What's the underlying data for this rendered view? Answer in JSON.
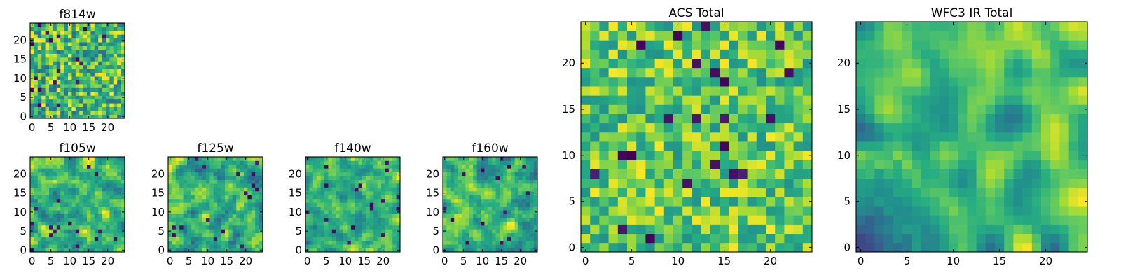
{
  "chart_data": [
    {
      "type": "heatmap",
      "title": "f814w",
      "xticks": [
        "0",
        "5",
        "10",
        "15",
        "20"
      ],
      "yticks": [
        "0",
        "5",
        "10",
        "15",
        "20"
      ],
      "xlim": [
        -0.5,
        24.5
      ],
      "ylim": [
        -0.5,
        24.5
      ],
      "grid_size": 25,
      "seed": 11,
      "smooth": 0,
      "vlow": 0.35,
      "rare": 0.04
    },
    {
      "type": "heatmap",
      "title": "f105w",
      "xticks": [
        "0",
        "5",
        "10",
        "15",
        "20"
      ],
      "yticks": [
        "0",
        "5",
        "10",
        "15",
        "20"
      ],
      "xlim": [
        -0.5,
        24.5
      ],
      "ylim": [
        -0.5,
        24.5
      ],
      "grid_size": 25,
      "seed": 23,
      "smooth": 1,
      "vlow": 0.35,
      "rare": 0.02
    },
    {
      "type": "heatmap",
      "title": "f125w",
      "xticks": [
        "0",
        "5",
        "10",
        "15",
        "20"
      ],
      "yticks": [
        "0",
        "5",
        "10",
        "15",
        "20"
      ],
      "xlim": [
        -0.5,
        24.5
      ],
      "ylim": [
        -0.5,
        24.5
      ],
      "grid_size": 25,
      "seed": 37,
      "smooth": 1,
      "vlow": 0.3,
      "rare": 0.03
    },
    {
      "type": "heatmap",
      "title": "f140w",
      "xticks": [
        "0",
        "5",
        "10",
        "15",
        "20"
      ],
      "yticks": [
        "0",
        "5",
        "10",
        "15",
        "20"
      ],
      "xlim": [
        -0.5,
        24.5
      ],
      "ylim": [
        -0.5,
        24.5
      ],
      "grid_size": 25,
      "seed": 41,
      "smooth": 1,
      "vlow": 0.35,
      "rare": 0.02
    },
    {
      "type": "heatmap",
      "title": "f160w",
      "xticks": [
        "0",
        "5",
        "10",
        "15",
        "20"
      ],
      "yticks": [
        "0",
        "5",
        "10",
        "15",
        "20"
      ],
      "xlim": [
        -0.5,
        24.5
      ],
      "ylim": [
        -0.5,
        24.5
      ],
      "grid_size": 25,
      "seed": 53,
      "smooth": 1,
      "vlow": 0.3,
      "rare": 0.03
    },
    {
      "type": "heatmap",
      "title": "ACS Total",
      "xticks": [
        "0",
        "5",
        "10",
        "15",
        "20"
      ],
      "yticks": [
        "0",
        "5",
        "10",
        "15",
        "20"
      ],
      "xlim": [
        -0.5,
        24.5
      ],
      "ylim": [
        -0.5,
        24.5
      ],
      "grid_size": 25,
      "seed": 67,
      "smooth": 0,
      "vlow": 0.5,
      "rare": 0.025
    },
    {
      "type": "heatmap",
      "title": "WFC3 IR Total",
      "xticks": [
        "0",
        "5",
        "10",
        "15",
        "20"
      ],
      "yticks": [
        "0",
        "5",
        "10",
        "15",
        "20"
      ],
      "xlim": [
        -0.5,
        24.5
      ],
      "ylim": [
        -0.5,
        24.5
      ],
      "grid_size": 25,
      "seed": 79,
      "smooth": 2,
      "vlow": 0.35,
      "rare": 0.0,
      "gradient": "lower-left-dark"
    }
  ],
  "colormap": [
    "#440154",
    "#3b528b",
    "#21918c",
    "#5ec962",
    "#fde725"
  ]
}
